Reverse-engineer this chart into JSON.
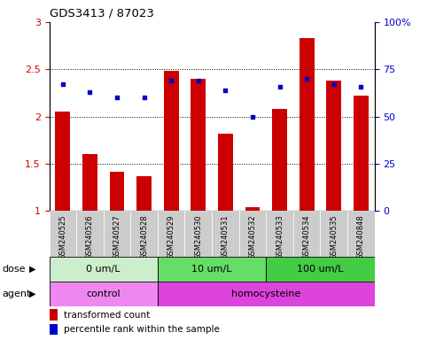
{
  "title": "GDS3413 / 87023",
  "samples": [
    "GSM240525",
    "GSM240526",
    "GSM240527",
    "GSM240528",
    "GSM240529",
    "GSM240530",
    "GSM240531",
    "GSM240532",
    "GSM240533",
    "GSM240534",
    "GSM240535",
    "GSM240848"
  ],
  "bar_values": [
    2.05,
    1.6,
    1.42,
    1.37,
    2.48,
    2.4,
    1.82,
    1.04,
    2.08,
    2.83,
    2.38,
    2.22
  ],
  "percentile_values": [
    67,
    63,
    60,
    60,
    69,
    69,
    64,
    50,
    66,
    70,
    67,
    66
  ],
  "bar_color": "#cc0000",
  "dot_color": "#0000cc",
  "ylim_left": [
    1,
    3
  ],
  "ylim_right": [
    0,
    100
  ],
  "yticks_left": [
    1.0,
    1.5,
    2.0,
    2.5,
    3.0
  ],
  "yticks_right": [
    0,
    25,
    50,
    75,
    100
  ],
  "ytick_labels_left": [
    "1",
    "1.5",
    "2",
    "2.5",
    "3"
  ],
  "ytick_labels_right": [
    "0",
    "25",
    "50",
    "75",
    "100%"
  ],
  "dose_groups": [
    {
      "label": "0 um/L",
      "start": 0,
      "end": 4,
      "color": "#cceecc"
    },
    {
      "label": "10 um/L",
      "start": 4,
      "end": 8,
      "color": "#66dd66"
    },
    {
      "label": "100 um/L",
      "start": 8,
      "end": 12,
      "color": "#44cc44"
    }
  ],
  "agent_groups": [
    {
      "label": "control",
      "start": 0,
      "end": 4,
      "color": "#ee88ee"
    },
    {
      "label": "homocysteine",
      "start": 4,
      "end": 12,
      "color": "#dd44dd"
    }
  ],
  "dose_label": "dose",
  "agent_label": "agent",
  "legend_bar_label": "transformed count",
  "legend_dot_label": "percentile rank within the sample",
  "plot_bg_color": "#ffffff",
  "tick_label_color_left": "#cc0000",
  "tick_label_color_right": "#0000cc",
  "sample_box_color": "#cccccc",
  "gridline_color": "#000000"
}
